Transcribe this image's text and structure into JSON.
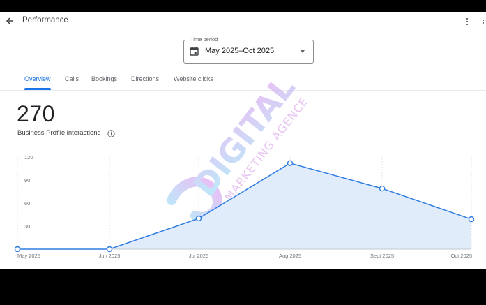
{
  "header": {
    "title": "Performance",
    "back_icon": "arrow-left-icon",
    "menu_icon": "more-vert-icon"
  },
  "time_period": {
    "label": "Time period",
    "value": "May 2025–Oct 2025",
    "icon": "calendar-icon"
  },
  "tabs": [
    {
      "label": "Overview",
      "active": true
    },
    {
      "label": "Calls",
      "active": false
    },
    {
      "label": "Bookings",
      "active": false
    },
    {
      "label": "Directions",
      "active": false
    },
    {
      "label": "Website clicks",
      "active": false
    }
  ],
  "summary": {
    "value": "270",
    "label": "Business Profile interactions",
    "info_icon": "info-icon"
  },
  "watermark": {
    "line1": "DIGITAL",
    "line2": "MARKETING AGENCE"
  },
  "colors": {
    "accent": "#1a73e8",
    "line": "#2f7de1",
    "area": "#e1ecfb",
    "text": "#202124",
    "muted": "#5f6368"
  },
  "chart_data": {
    "type": "area",
    "categories": [
      "May 2025",
      "Jun 2025",
      "Jul 2025",
      "Aug 2025",
      "Sept 2025",
      "Oct 2025"
    ],
    "values": [
      0,
      0,
      40,
      112,
      79,
      39
    ],
    "title": "Business Profile interactions",
    "xlabel": "",
    "ylabel": "",
    "yticks": [
      30,
      60,
      90,
      120
    ],
    "ylim": [
      0,
      120
    ],
    "grid": "vertical dotted lines at each month",
    "legend": "none"
  }
}
